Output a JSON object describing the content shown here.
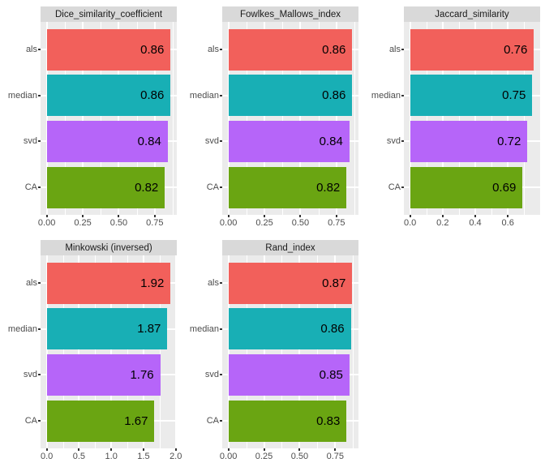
{
  "figure_name": "clustering-similarity-metrics-facets",
  "chart_data": {
    "type": "bar",
    "orientation": "horizontal",
    "facet_layout": {
      "rows": 2,
      "cols": 3
    },
    "categories": [
      "als",
      "median",
      "svd",
      "CA"
    ],
    "series_colors": [
      "#F2605B",
      "#18AFB5",
      "#B665F9",
      "#6AA512"
    ],
    "panels": [
      {
        "title": "Dice_similarity_coefficient",
        "values": [
          0.86,
          0.86,
          0.84,
          0.82
        ],
        "value_labels": [
          "0.86",
          "0.86",
          "0.84",
          "0.82"
        ],
        "xticks": [
          0,
          0.25,
          0.5,
          0.75
        ],
        "xtick_labels": [
          "0.00",
          "0.25",
          "0.50",
          "0.75"
        ]
      },
      {
        "title": "Fowlkes_Mallows_index",
        "values": [
          0.86,
          0.86,
          0.84,
          0.82
        ],
        "value_labels": [
          "0.86",
          "0.86",
          "0.84",
          "0.82"
        ],
        "xticks": [
          0,
          0.25,
          0.5,
          0.75
        ],
        "xtick_labels": [
          "0.00",
          "0.25",
          "0.50",
          "0.75"
        ]
      },
      {
        "title": "Jaccard_similarity",
        "values": [
          0.76,
          0.75,
          0.72,
          0.69
        ],
        "value_labels": [
          "0.76",
          "0.75",
          "0.72",
          "0.69"
        ],
        "xticks": [
          0,
          0.2,
          0.4,
          0.6
        ],
        "xtick_labels": [
          "0.0",
          "0.2",
          "0.4",
          "0.6"
        ]
      },
      {
        "title": "Minkowski (inversed)",
        "values": [
          1.92,
          1.87,
          1.76,
          1.67
        ],
        "value_labels": [
          "1.92",
          "1.87",
          "1.76",
          "1.67"
        ],
        "xticks": [
          0,
          0.5,
          1.0,
          1.5,
          2.0
        ],
        "xtick_labels": [
          "0.0",
          "0.5",
          "1.0",
          "1.5",
          "2.0"
        ]
      },
      {
        "title": "Rand_index",
        "values": [
          0.87,
          0.86,
          0.85,
          0.83
        ],
        "value_labels": [
          "0.87",
          "0.86",
          "0.85",
          "0.83"
        ],
        "xticks": [
          0,
          0.25,
          0.5,
          0.75
        ],
        "xtick_labels": [
          "0.00",
          "0.25",
          "0.50",
          "0.75"
        ]
      }
    ],
    "axis_expansion_mult": 0.05,
    "style": {
      "panel_bg": "#EBEBEB",
      "strip_bg": "#D9D9D9",
      "grid_color": "#FFFFFF",
      "tick_color": "#333333",
      "axis_text_color": "#4D4D4D",
      "strip_text_color": "#1A1A1A",
      "bar_label_color": "#000000",
      "background": "#FFFFFF"
    }
  }
}
